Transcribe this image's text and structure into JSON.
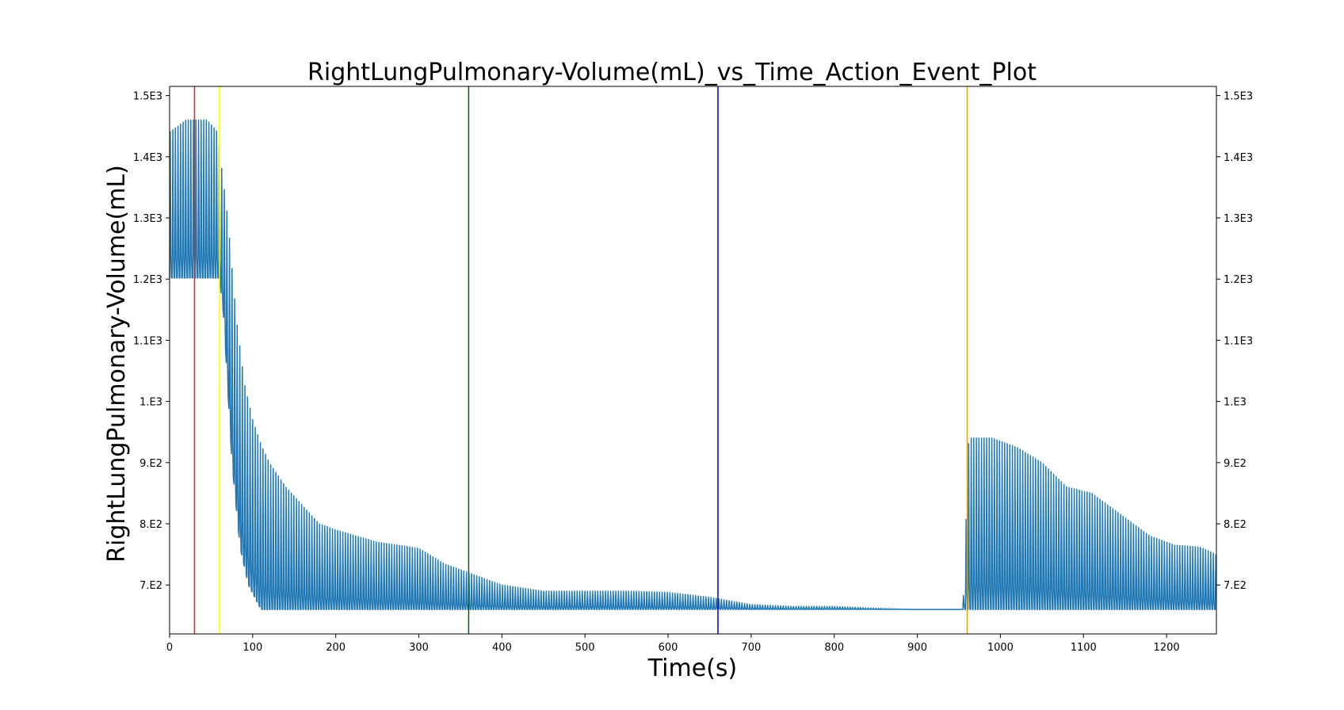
{
  "chart_data": {
    "type": "line",
    "title": "RightLungPulmonary-Volume(mL)_vs_Time_Action_Event_Plot",
    "xlabel": "Time(s)",
    "ylabel": "RightLungPulmonary-Volume(mL)",
    "xlim": [
      0,
      1260
    ],
    "ylim": [
      620,
      1515
    ],
    "x_ticks": [
      0,
      100,
      200,
      300,
      400,
      500,
      600,
      700,
      800,
      900,
      1000,
      1100,
      1200
    ],
    "x_tick_labels": [
      "0",
      "100",
      "200",
      "300",
      "400",
      "500",
      "600",
      "700",
      "800",
      "900",
      "1000",
      "1100",
      "1200"
    ],
    "y_ticks": [
      700,
      800,
      900,
      1000,
      1100,
      1200,
      1300,
      1400,
      1500
    ],
    "y_tick_labels": [
      "7.E2",
      "8.E2",
      "9.E2",
      "1.E3",
      "1.1E3",
      "1.2E3",
      "1.3E3",
      "1.4E3",
      "1.5E3"
    ],
    "grid": false,
    "series": [
      {
        "color": "#1f77b4",
        "breath_period_s": 3.1,
        "baseline": [
          [
            0,
            1202
          ],
          [
            60,
            1202
          ],
          [
            65,
            1140
          ],
          [
            75,
            900
          ],
          [
            85,
            760
          ],
          [
            95,
            700
          ],
          [
            110,
            660
          ],
          [
            960,
            660
          ],
          [
            1260,
            660
          ]
        ],
        "peak_envelope": [
          [
            0,
            1440
          ],
          [
            20,
            1460
          ],
          [
            45,
            1460
          ],
          [
            58,
            1440
          ],
          [
            62,
            1390
          ],
          [
            70,
            1300
          ],
          [
            80,
            1140
          ],
          [
            90,
            1030
          ],
          [
            100,
            970
          ],
          [
            110,
            930
          ],
          [
            120,
            900
          ],
          [
            140,
            860
          ],
          [
            160,
            830
          ],
          [
            180,
            800
          ],
          [
            200,
            790
          ],
          [
            250,
            770
          ],
          [
            300,
            760
          ],
          [
            330,
            735
          ],
          [
            360,
            720
          ],
          [
            400,
            700
          ],
          [
            450,
            690
          ],
          [
            500,
            690
          ],
          [
            550,
            690
          ],
          [
            600,
            688
          ],
          [
            650,
            680
          ],
          [
            700,
            668
          ],
          [
            750,
            665
          ],
          [
            800,
            665
          ],
          [
            850,
            662
          ],
          [
            900,
            660
          ],
          [
            955,
            660
          ],
          [
            962,
            940
          ],
          [
            990,
            940
          ],
          [
            1020,
            925
          ],
          [
            1050,
            900
          ],
          [
            1080,
            860
          ],
          [
            1110,
            850
          ],
          [
            1150,
            810
          ],
          [
            1180,
            780
          ],
          [
            1210,
            765
          ],
          [
            1240,
            762
          ],
          [
            1260,
            750
          ]
        ]
      }
    ],
    "event_lines": [
      {
        "x": 30,
        "color": "#d62728"
      },
      {
        "x": 60,
        "color": "#ffff00"
      },
      {
        "x": 360,
        "color": "#006400"
      },
      {
        "x": 660,
        "color": "#0000cd"
      },
      {
        "x": 960,
        "color": "#daa520"
      }
    ]
  }
}
